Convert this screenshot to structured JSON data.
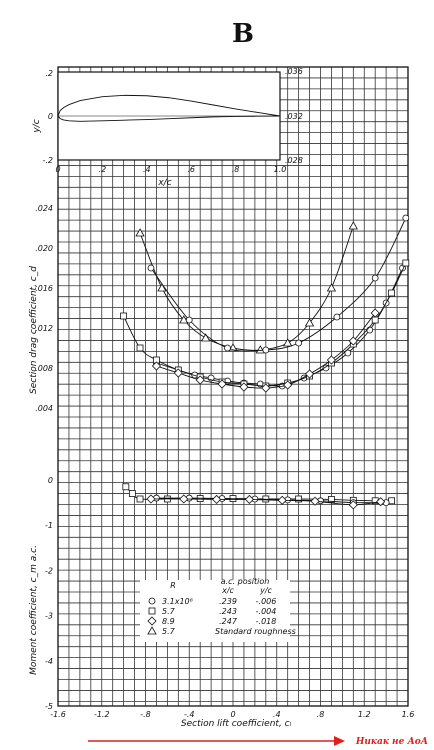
{
  "panel_label": "B",
  "annotation": {
    "text": "Никак не АоА",
    "color": "#e0201a"
  },
  "legend": {
    "col_R": "R",
    "col_ac": "a.c. position",
    "col_xc": "x/c",
    "col_yc": "y/c",
    "rows": [
      {
        "marker": "circle",
        "R": "3.1x10⁶",
        "xc": ".239",
        "yc": "-.006"
      },
      {
        "marker": "square",
        "R": "5.7",
        "xc": ".243",
        "yc": "-.004"
      },
      {
        "marker": "diamond",
        "R": "8.9",
        "xc": ".247",
        "yc": "-.018"
      },
      {
        "marker": "triangle",
        "R": "5.7",
        "xc": "",
        "yc": "Standard roughness"
      }
    ]
  },
  "chart_data": [
    {
      "type": "line",
      "xlabel": "x/c",
      "ylabel": "y/c",
      "xlim": [
        0,
        1.0
      ],
      "ylim": [
        -0.2,
        0.2
      ],
      "x_ticks": [
        "0",
        ".2",
        ".4",
        ".6",
        ".8",
        "1.0"
      ],
      "y_ticks": [
        ".2",
        "0",
        "-.2"
      ],
      "right_ticks": [
        ".036",
        ".032",
        ".028"
      ],
      "upper": {
        "x": [
          0,
          0.01,
          0.025,
          0.05,
          0.1,
          0.2,
          0.3,
          0.4,
          0.5,
          0.6,
          0.7,
          0.8,
          0.9,
          1.0
        ],
        "y": [
          0,
          0.025,
          0.038,
          0.052,
          0.07,
          0.088,
          0.094,
          0.092,
          0.083,
          0.068,
          0.05,
          0.032,
          0.016,
          0
        ]
      },
      "lower": {
        "x": [
          0,
          0.01,
          0.025,
          0.05,
          0.1,
          0.2,
          0.3,
          0.4,
          0.5,
          0.6,
          0.7,
          0.8,
          0.9,
          1.0
        ],
        "y": [
          0,
          -0.012,
          -0.018,
          -0.022,
          -0.024,
          -0.022,
          -0.019,
          -0.016,
          -0.012,
          -0.008,
          -0.004,
          -0.002,
          -0.001,
          0
        ]
      }
    },
    {
      "type": "line",
      "xlabel": "Section lift coefficient, cₗ",
      "ylabel": "Section drag coefficient, c_d",
      "ylabel2": "Moment coefficient, c_m a.c.",
      "xlim": [
        -1.6,
        1.6
      ],
      "ylim_drag": [
        0,
        0.024
      ],
      "ylim_moment": [
        -5,
        0
      ],
      "x_ticks": [
        "-1.6",
        "-1.2",
        "-.8",
        "-.4",
        "0",
        ".4",
        ".8",
        "1.2",
        "1.6"
      ],
      "drag_ticks": [
        ".024",
        ".020",
        ".016",
        ".012",
        ".008",
        ".004"
      ],
      "moment_ticks": [
        "0",
        "-1",
        "-2",
        "-3",
        "-4",
        "-5"
      ],
      "drag_series": [
        {
          "marker": "circle",
          "x": [
            -0.7,
            -0.5,
            -0.35,
            -0.2,
            -0.05,
            0.1,
            0.25,
            0.45,
            0.65,
            0.85,
            1.05,
            1.25,
            1.4,
            1.55
          ],
          "y": [
            0.0085,
            0.0078,
            0.0073,
            0.007,
            0.0067,
            0.0065,
            0.0064,
            0.0062,
            0.007,
            0.008,
            0.0095,
            0.0118,
            0.0145,
            0.018
          ]
        },
        {
          "marker": "square",
          "x": [
            -1.0,
            -0.85,
            -0.7,
            -0.5,
            -0.3,
            -0.1,
            0.1,
            0.3,
            0.5,
            0.7,
            0.9,
            1.1,
            1.3,
            1.45,
            1.58
          ],
          "y": [
            0.0132,
            0.01,
            0.0088,
            0.0078,
            0.0071,
            0.0066,
            0.0064,
            0.0062,
            0.0065,
            0.0072,
            0.0085,
            0.0104,
            0.0128,
            0.0155,
            0.0185
          ]
        },
        {
          "marker": "diamond",
          "x": [
            -0.7,
            -0.5,
            -0.3,
            -0.1,
            0.1,
            0.3,
            0.5,
            0.7,
            0.9,
            1.1,
            1.3
          ],
          "y": [
            0.0082,
            0.0075,
            0.0068,
            0.0064,
            0.0061,
            0.006,
            0.0063,
            0.0074,
            0.0088,
            0.0107,
            0.0135
          ]
        },
        {
          "marker": "triangle",
          "x": [
            -0.85,
            -0.65,
            -0.45,
            -0.25,
            0.0,
            0.25,
            0.5,
            0.7,
            0.9,
            1.1
          ],
          "y": [
            0.0215,
            0.016,
            0.0128,
            0.011,
            0.01,
            0.0098,
            0.0105,
            0.0125,
            0.016,
            0.0222
          ]
        },
        {
          "marker": "circle",
          "x": [
            -0.75,
            -0.4,
            -0.05,
            0.3,
            0.6,
            0.95,
            1.3,
            1.58
          ],
          "y": [
            0.018,
            0.0128,
            0.01,
            0.0098,
            0.0105,
            0.0131,
            0.017,
            0.023
          ]
        }
      ],
      "moment_series": [
        {
          "marker": "square",
          "x": [
            -0.98,
            -0.92,
            -0.85,
            -0.6,
            -0.3,
            0.0,
            0.3,
            0.6,
            0.9,
            1.1,
            1.3,
            1.45
          ],
          "y": [
            -0.15,
            -0.3,
            -0.42,
            -0.42,
            -0.41,
            -0.41,
            -0.42,
            -0.42,
            -0.43,
            -0.45,
            -0.46,
            -0.46
          ]
        },
        {
          "marker": "circle",
          "x": [
            -0.7,
            -0.4,
            -0.1,
            0.2,
            0.5,
            0.8,
            1.1,
            1.4
          ],
          "y": [
            -0.4,
            -0.4,
            -0.41,
            -0.42,
            -0.44,
            -0.46,
            -0.5,
            -0.5
          ]
        },
        {
          "marker": "diamond",
          "x": [
            -0.75,
            -0.45,
            -0.15,
            0.15,
            0.45,
            0.75,
            1.1,
            1.35
          ],
          "y": [
            -0.42,
            -0.42,
            -0.43,
            -0.43,
            -0.45,
            -0.47,
            -0.55,
            -0.48
          ]
        }
      ]
    }
  ]
}
